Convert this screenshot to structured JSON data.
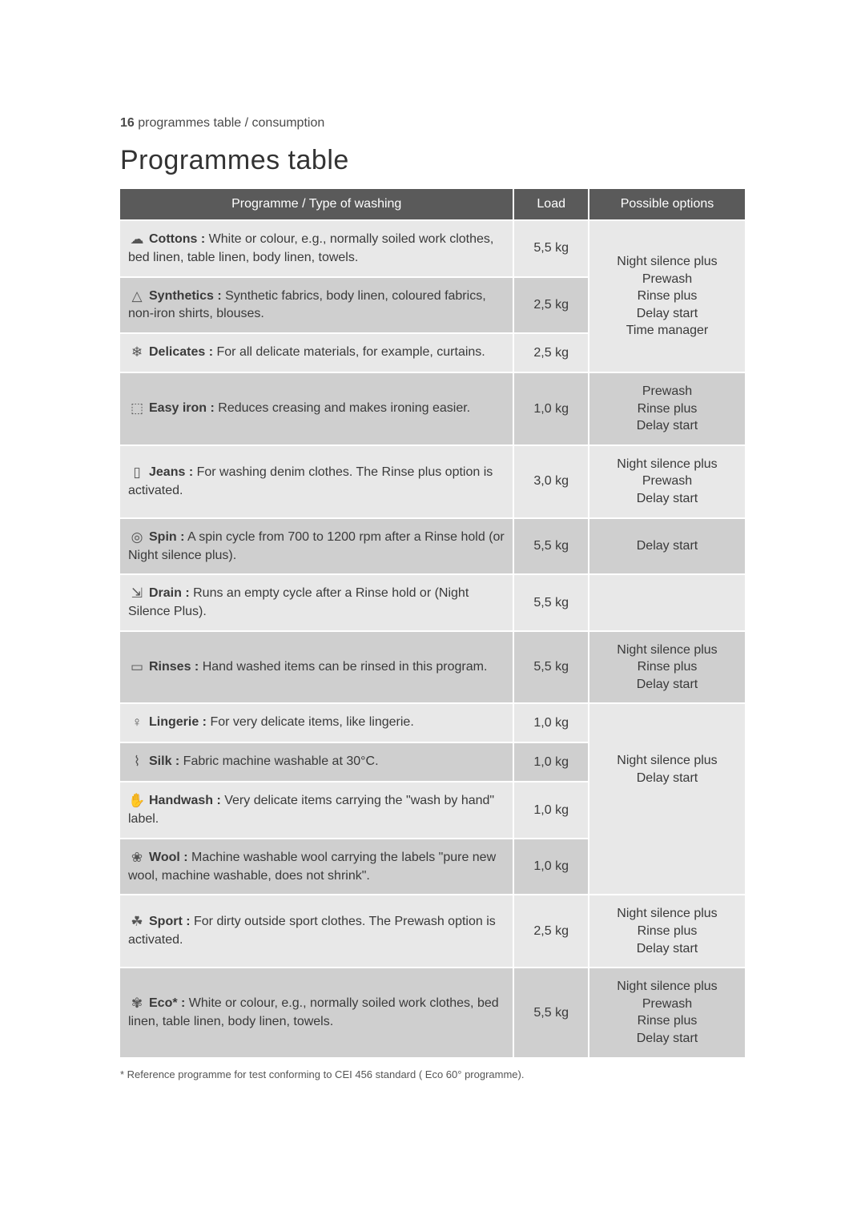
{
  "page": {
    "running_head_number": "16",
    "running_head_text": " programmes table / consumption",
    "title": "Programmes table",
    "footnote": "* Reference programme for test conforming to CEI 456 standard ( Eco 60° programme)."
  },
  "table": {
    "header": {
      "programme": "Programme / Type of washing",
      "load": "Load",
      "options": "Possible options"
    },
    "colors": {
      "header_bg": "#5a5a5a",
      "header_fg": "#ffffff",
      "light_bg": "#e8e8e8",
      "dark_bg": "#cfcfcf",
      "border": "#ffffff",
      "text": "#3a3a3a"
    },
    "groups": [
      {
        "options_lines": [
          "Night silence plus",
          "Prewash",
          "Rinse plus",
          "Delay start",
          "Time manager"
        ],
        "rows": [
          {
            "shade": "light",
            "icon": "☁",
            "name": "Cottons :",
            "desc": " White or colour, e.g., normally soiled work clothes, bed linen, table linen, body linen, towels.",
            "load": "5,5 kg"
          },
          {
            "shade": "dark",
            "icon": "△",
            "name": "Synthetics :",
            "desc": " Synthetic fabrics, body linen, coloured fabrics, non-iron shirts, blouses.",
            "load": "2,5 kg"
          },
          {
            "shade": "light",
            "icon": "❄",
            "name": "Delicates :",
            "desc": " For all delicate materials, for example, curtains.",
            "load": "2,5 kg"
          }
        ]
      },
      {
        "options_lines": [
          "Prewash",
          "Rinse plus",
          "Delay start"
        ],
        "rows": [
          {
            "shade": "dark",
            "icon": "⬚",
            "name": "Easy iron :",
            "desc": " Reduces creasing and makes ironing easier.",
            "load": "1,0 kg"
          }
        ]
      },
      {
        "options_lines": [
          "Night silence plus",
          "Prewash",
          "Delay start"
        ],
        "rows": [
          {
            "shade": "light",
            "icon": "▯",
            "name": "Jeans :",
            "desc": " For washing denim clothes. The Rinse plus option is activated.",
            "load": "3,0 kg"
          }
        ]
      },
      {
        "options_lines": [
          "Delay start"
        ],
        "rows": [
          {
            "shade": "dark",
            "icon": "◎",
            "name": "Spin :",
            "desc": " A spin cycle from 700 to 1200 rpm after a Rinse hold (or Night silence plus).",
            "load": "5,5 kg"
          }
        ]
      },
      {
        "options_lines": [
          ""
        ],
        "rows": [
          {
            "shade": "light",
            "icon": "⇲",
            "name": "Drain :",
            "desc": " Runs an empty cycle after a Rinse hold or (Night Silence Plus).",
            "load": "5,5 kg"
          }
        ]
      },
      {
        "options_lines": [
          "Night silence plus",
          "Rinse plus",
          "Delay start"
        ],
        "rows": [
          {
            "shade": "dark",
            "icon": "▭",
            "name": "Rinses :",
            "desc": " Hand washed items can be rinsed in this program.",
            "load": "5,5 kg"
          }
        ]
      },
      {
        "options_lines": [
          "Night silence plus",
          "Delay start"
        ],
        "options_extra_pad": true,
        "rows": [
          {
            "shade": "light",
            "icon": "♀",
            "name": "Lingerie :",
            "desc": " For very delicate items, like lingerie.",
            "load": "1,0 kg"
          },
          {
            "shade": "dark",
            "icon": "⌇",
            "name": "Silk :",
            "desc": " Fabric machine washable at 30°C.",
            "load": "1,0 kg"
          },
          {
            "shade": "light",
            "icon": "✋",
            "name": "Handwash :",
            "desc": " Very delicate items carrying the \"wash by hand\" label.",
            "load": "1,0 kg"
          },
          {
            "shade": "dark",
            "icon": "❀",
            "name": "Wool :",
            "desc": " Machine washable wool carrying the labels \"pure new wool, machine washable, does not shrink\".",
            "load": "1,0 kg"
          }
        ]
      },
      {
        "options_lines": [
          "Night silence plus",
          "Rinse plus",
          "Delay start"
        ],
        "rows": [
          {
            "shade": "light",
            "icon": "☘",
            "name": "Sport :",
            "desc": " For dirty outside sport clothes. The Prewash option is activated.",
            "load": "2,5 kg"
          }
        ]
      },
      {
        "options_lines": [
          "Night silence plus",
          "Prewash",
          "Rinse plus",
          "Delay start"
        ],
        "rows": [
          {
            "shade": "dark",
            "icon": "✾",
            "name": "Eco* :",
            "desc": " White or colour, e.g., normally soiled work clothes, bed linen, table linen, body linen, towels.",
            "load": "5,5 kg"
          }
        ]
      }
    ]
  }
}
